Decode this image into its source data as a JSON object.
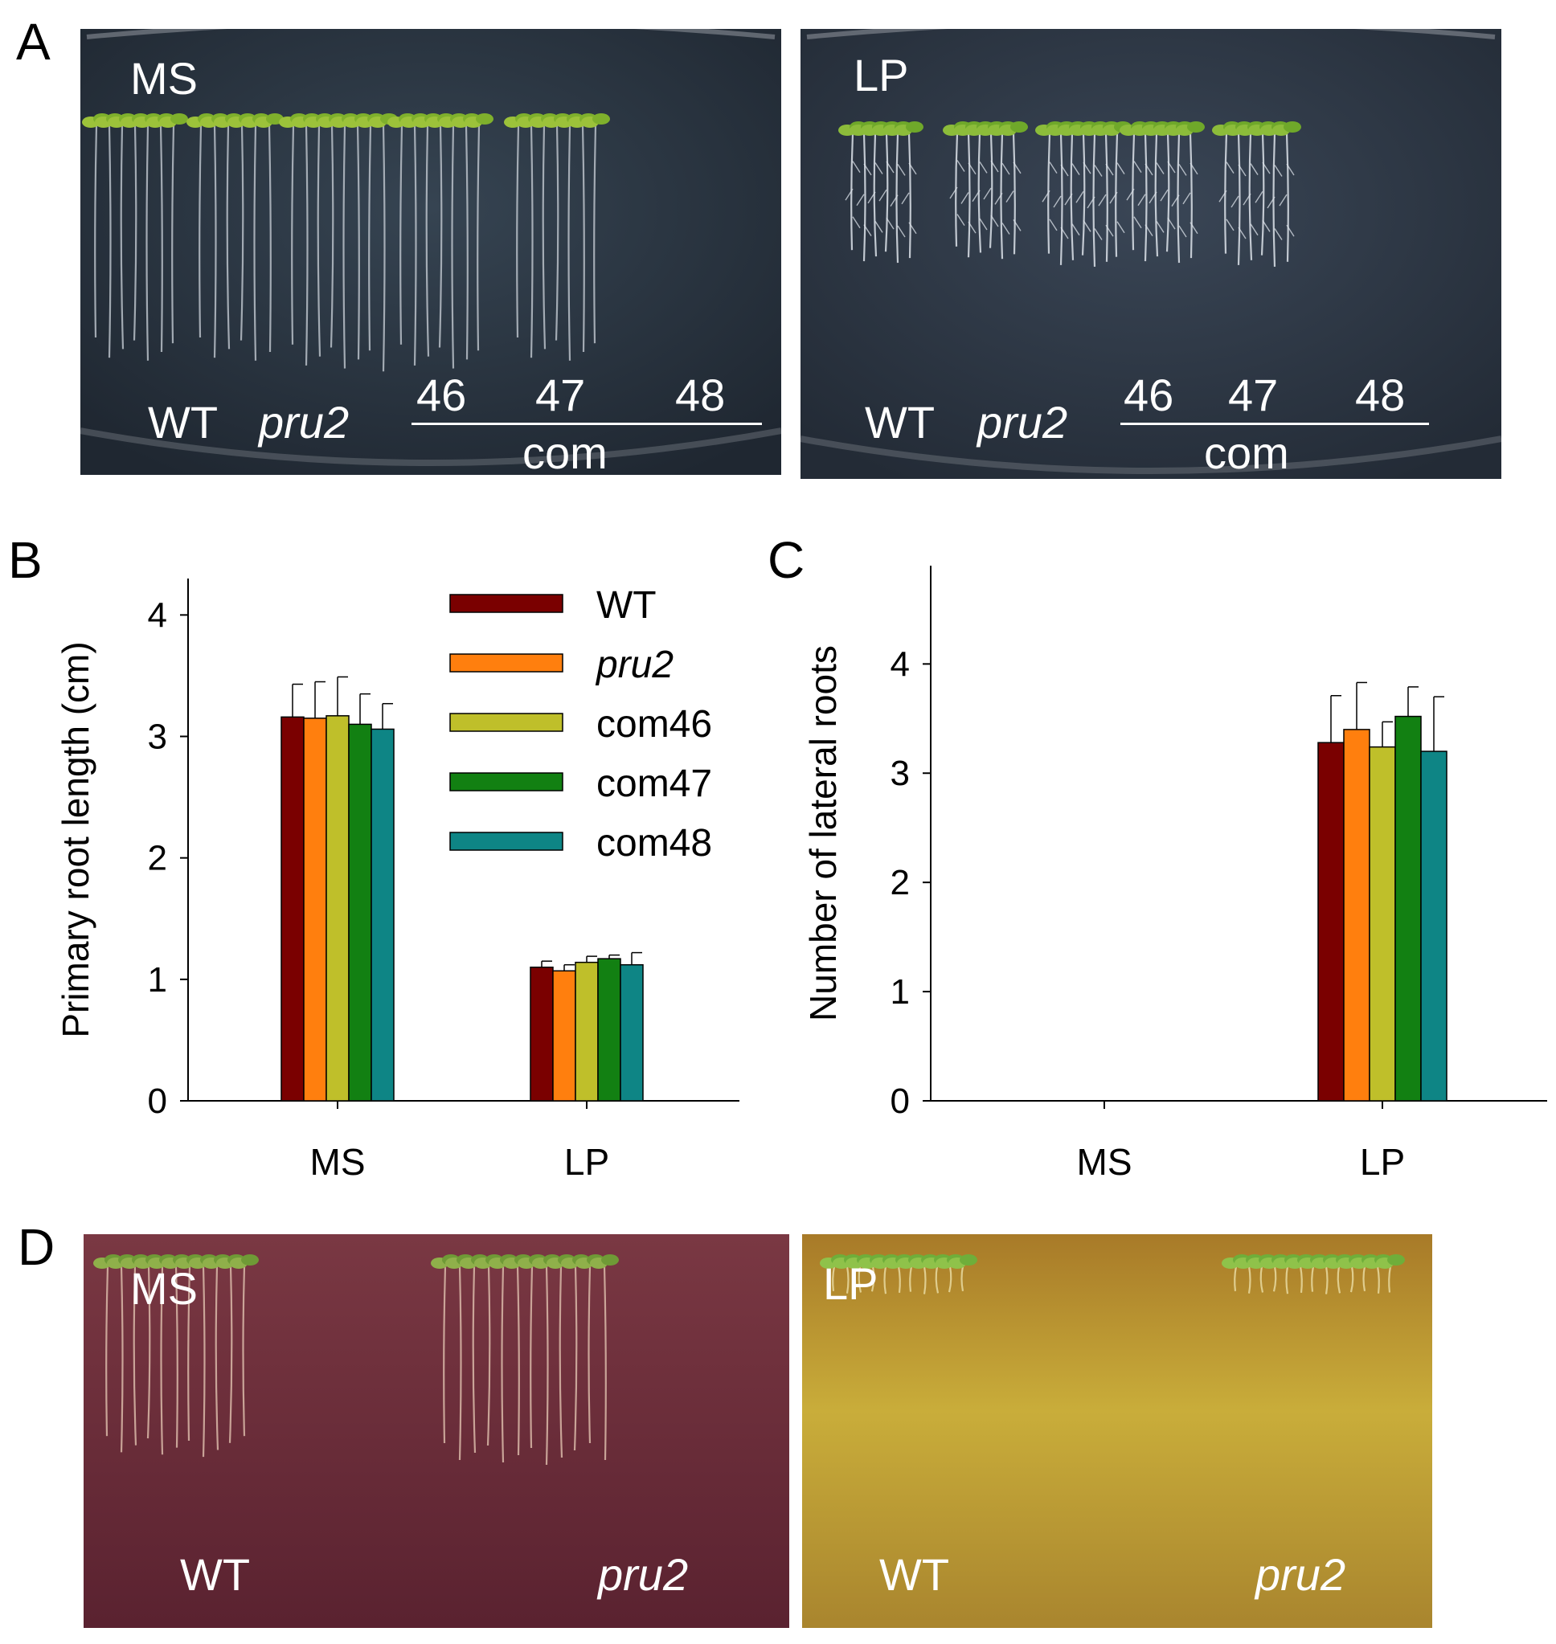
{
  "panel_letters": {
    "a": "A",
    "b": "B",
    "c": "C",
    "d": "D"
  },
  "panel_a": {
    "ms_plate": {
      "condition": "MS",
      "wt": "WT",
      "mutant": "pru2",
      "line46": "46",
      "line47": "47",
      "line48": "48",
      "group": "com"
    },
    "lp_plate": {
      "condition": "LP",
      "wt": "WT",
      "mutant": "pru2",
      "line46": "46",
      "line47": "47",
      "line48": "48",
      "group": "com"
    }
  },
  "panel_d": {
    "ms_plate": {
      "condition": "MS",
      "wt": "WT",
      "mutant": "pru2"
    },
    "lp_plate": {
      "condition": "LP",
      "wt": "WT",
      "mutant": "pru2"
    }
  },
  "colors": {
    "WT": "#7a0000",
    "pru2": "#ff7f0e",
    "com46": "#bfbf2a",
    "com47": "#128012",
    "com48": "#0e8585",
    "ms_plate_bg": "#2a3440",
    "lp_plate_bg": "#303a48",
    "ms_red_plate": "#6a2b37",
    "lp_yellow_plate": "#b28e2e"
  },
  "chart_data": [
    {
      "type": "bar",
      "categories": [
        "MS",
        "LP"
      ],
      "ylabel": "Primary root length (cm)",
      "xlabel": "",
      "ylim": [
        0,
        4.3
      ],
      "yticks": [
        "0",
        "1",
        "2",
        "3",
        "4"
      ],
      "legend_position": "top-right",
      "error_bars": true,
      "series": [
        {
          "name": "WT",
          "italic": false,
          "values": [
            3.16,
            1.1
          ],
          "errors": [
            0.27,
            0.05
          ]
        },
        {
          "name": "pru2",
          "italic": true,
          "values": [
            3.15,
            1.07
          ],
          "errors": [
            0.3,
            0.05
          ]
        },
        {
          "name": "com46",
          "italic": false,
          "values": [
            3.17,
            1.14
          ],
          "errors": [
            0.32,
            0.05
          ]
        },
        {
          "name": "com47",
          "italic": false,
          "values": [
            3.1,
            1.17
          ],
          "errors": [
            0.25,
            0.03
          ]
        },
        {
          "name": "com48",
          "italic": false,
          "values": [
            3.06,
            1.12
          ],
          "errors": [
            0.21,
            0.1
          ]
        }
      ]
    },
    {
      "type": "bar",
      "categories": [
        "MS",
        "LP"
      ],
      "ylabel": "Number of lateral roots",
      "xlabel": "",
      "ylim": [
        0,
        4.9
      ],
      "yticks": [
        "0",
        "1",
        "2",
        "3",
        "4"
      ],
      "error_bars": true,
      "series": [
        {
          "name": "WT",
          "values": [
            0,
            3.28
          ],
          "errors": [
            0,
            0.43
          ]
        },
        {
          "name": "pru2",
          "values": [
            0,
            3.4
          ],
          "errors": [
            0,
            0.43
          ]
        },
        {
          "name": "com46",
          "values": [
            0,
            3.24
          ],
          "errors": [
            0,
            0.23
          ]
        },
        {
          "name": "com47",
          "values": [
            0,
            3.52
          ],
          "errors": [
            0,
            0.27
          ]
        },
        {
          "name": "com48",
          "values": [
            0,
            3.2
          ],
          "errors": [
            0,
            0.5
          ]
        }
      ]
    }
  ]
}
